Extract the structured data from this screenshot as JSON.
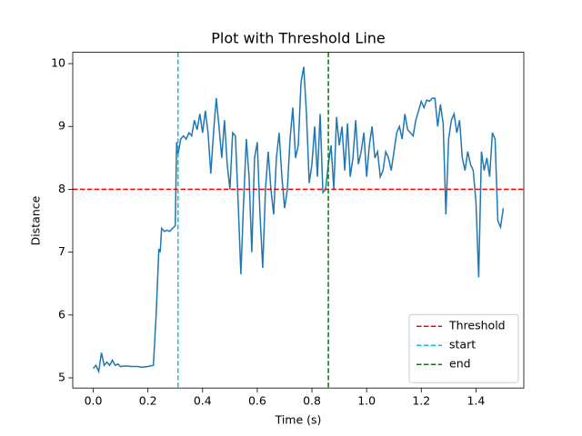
{
  "chart_data": {
    "type": "line",
    "title": "Plot with Threshold Line",
    "xlabel": "Time (s)",
    "ylabel": "Distance",
    "x": [
      0.0,
      0.01,
      0.02,
      0.03,
      0.04,
      0.05,
      0.06,
      0.07,
      0.08,
      0.09,
      0.1,
      0.12,
      0.14,
      0.16,
      0.18,
      0.2,
      0.22,
      0.225,
      0.23,
      0.24,
      0.245,
      0.25,
      0.26,
      0.27,
      0.28,
      0.29,
      0.3,
      0.305,
      0.31,
      0.32,
      0.33,
      0.34,
      0.35,
      0.36,
      0.37,
      0.38,
      0.39,
      0.4,
      0.41,
      0.42,
      0.43,
      0.44,
      0.45,
      0.46,
      0.47,
      0.48,
      0.49,
      0.5,
      0.51,
      0.52,
      0.53,
      0.54,
      0.55,
      0.56,
      0.57,
      0.58,
      0.59,
      0.6,
      0.61,
      0.62,
      0.63,
      0.64,
      0.65,
      0.66,
      0.67,
      0.68,
      0.69,
      0.7,
      0.71,
      0.72,
      0.73,
      0.74,
      0.75,
      0.76,
      0.77,
      0.78,
      0.79,
      0.8,
      0.81,
      0.82,
      0.83,
      0.84,
      0.85,
      0.86,
      0.87,
      0.88,
      0.89,
      0.9,
      0.91,
      0.92,
      0.93,
      0.94,
      0.95,
      0.96,
      0.97,
      0.98,
      0.99,
      1.0,
      1.01,
      1.02,
      1.03,
      1.04,
      1.05,
      1.06,
      1.07,
      1.08,
      1.09,
      1.1,
      1.11,
      1.12,
      1.13,
      1.14,
      1.15,
      1.16,
      1.17,
      1.18,
      1.19,
      1.2,
      1.21,
      1.22,
      1.23,
      1.24,
      1.25,
      1.26,
      1.27,
      1.28,
      1.29,
      1.3,
      1.31,
      1.32,
      1.33,
      1.34,
      1.35,
      1.36,
      1.37,
      1.38,
      1.39,
      1.4,
      1.41,
      1.42,
      1.43,
      1.44,
      1.45,
      1.46,
      1.47,
      1.48,
      1.49,
      1.5
    ],
    "series": [
      {
        "color": "#1f77b4",
        "values": [
          5.15,
          5.2,
          5.1,
          5.4,
          5.2,
          5.25,
          5.2,
          5.28,
          5.2,
          5.22,
          5.18,
          5.19,
          5.18,
          5.18,
          5.17,
          5.18,
          5.2,
          5.6,
          6.0,
          7.05,
          7.0,
          7.38,
          7.33,
          7.35,
          7.33,
          7.38,
          7.42,
          8.75,
          8.55,
          8.8,
          8.85,
          8.8,
          8.9,
          8.85,
          9.1,
          8.95,
          9.2,
          8.9,
          9.25,
          8.9,
          8.25,
          8.9,
          9.45,
          9.0,
          8.5,
          9.1,
          8.4,
          8.0,
          8.9,
          8.85,
          7.8,
          6.65,
          7.8,
          8.8,
          8.2,
          7.0,
          8.5,
          8.75,
          7.6,
          6.75,
          8.0,
          8.6,
          8.0,
          7.6,
          8.5,
          8.9,
          8.2,
          7.7,
          8.0,
          8.8,
          9.3,
          8.5,
          8.7,
          9.7,
          9.95,
          9.2,
          8.1,
          8.4,
          9.0,
          8.2,
          9.2,
          7.95,
          8.0,
          8.4,
          8.7,
          8.0,
          9.15,
          8.7,
          9.0,
          8.3,
          9.05,
          8.2,
          8.5,
          9.1,
          8.4,
          8.6,
          8.9,
          8.2,
          8.7,
          9.0,
          8.5,
          8.6,
          8.2,
          8.3,
          8.6,
          8.5,
          8.3,
          8.6,
          8.9,
          9.0,
          8.8,
          9.2,
          8.95,
          8.9,
          8.85,
          9.1,
          9.25,
          9.4,
          9.3,
          9.42,
          9.4,
          9.45,
          9.45,
          9.0,
          9.35,
          9.05,
          7.6,
          8.8,
          9.1,
          9.2,
          8.9,
          9.1,
          8.5,
          8.3,
          8.6,
          8.4,
          8.3,
          7.8,
          6.6,
          8.6,
          8.3,
          8.5,
          8.2,
          8.9,
          8.8,
          7.5,
          7.4,
          7.7
        ]
      }
    ],
    "hlines": [
      {
        "name": "Threshold",
        "value": 8,
        "color": "#ff0000"
      }
    ],
    "vlines": [
      {
        "name": "start",
        "value": 0.31,
        "color": "#17becf"
      },
      {
        "name": "end",
        "value": 0.86,
        "color": "#008000"
      }
    ],
    "xlim": [
      -0.075,
      1.575
    ],
    "ylim": [
      4.838,
      10.18
    ],
    "xticks": [
      {
        "value": 0,
        "label": "0.0"
      },
      0.2,
      0.4,
      0.6,
      0.8,
      {
        "value": 1,
        "label": "1.0"
      },
      1.2,
      1.4
    ],
    "yticks": [
      5,
      6,
      7,
      8,
      9,
      10
    ],
    "legend": "lower right"
  }
}
